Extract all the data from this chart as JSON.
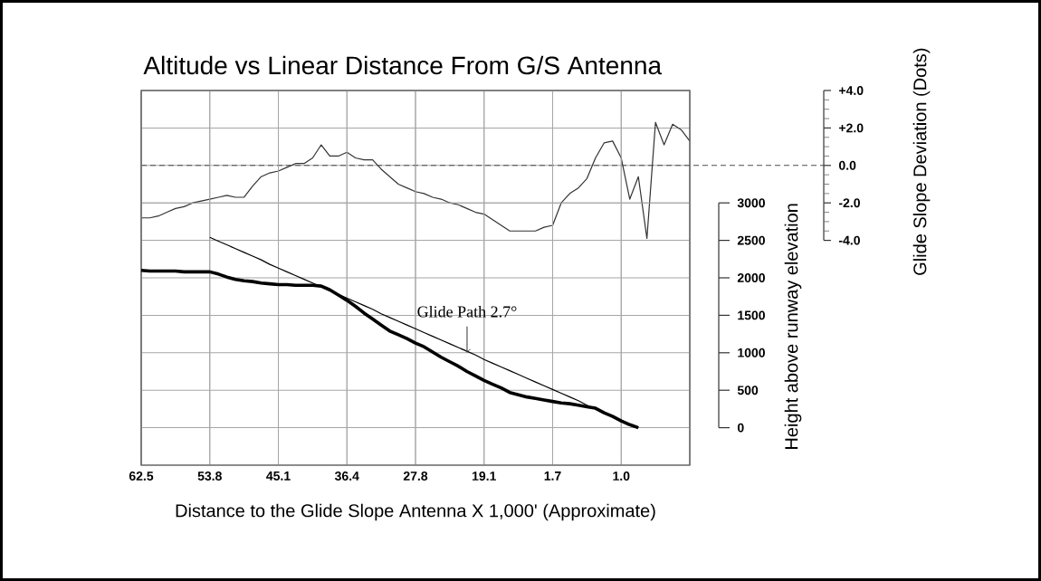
{
  "chart_data": [
    {
      "type": "line",
      "title": "Altitude vs Linear Distance From G/S Antenna",
      "xlabel": "Distance to the Glide Slope Antenna  X 1,000' (Approximate)",
      "ylabel": "Glide Slope Deviation (Dots)",
      "categories": [
        "62.5",
        null,
        null,
        null,
        null,
        null,
        null,
        null,
        "53.8",
        null,
        null,
        null,
        null,
        null,
        null,
        null,
        "45.1",
        null,
        null,
        null,
        null,
        null,
        null,
        null,
        "36.4",
        null,
        null,
        null,
        null,
        null,
        null,
        null,
        "27.8",
        null,
        null,
        null,
        null,
        null,
        null,
        null,
        "19.1",
        null,
        null,
        null,
        null,
        null,
        null,
        null,
        "1.7",
        null,
        null,
        null,
        null,
        null,
        null,
        null,
        "1.0",
        null,
        null,
        null,
        null,
        null,
        null,
        null,
        null
      ],
      "series": [
        {
          "color": "#333333",
          "values": [
            -2.8,
            -2.8,
            -2.7,
            -2.5,
            -2.3,
            -2.2,
            -2.0,
            -1.9,
            -1.8,
            -1.7,
            -1.6,
            -1.7,
            -1.7,
            -1.1,
            -0.6,
            -0.4,
            -0.3,
            -0.1,
            0.1,
            0.1,
            0.4,
            1.1,
            0.5,
            0.5,
            0.7,
            0.4,
            0.3,
            0.3,
            -0.2,
            -0.6,
            -1.0,
            -1.2,
            -1.4,
            -1.5,
            -1.7,
            -1.8,
            -2.0,
            -2.1,
            -2.3,
            -2.5,
            -2.6,
            -2.9,
            -3.2,
            -3.5,
            -3.5,
            -3.5,
            -3.5,
            -3.3,
            -3.2,
            -2.0,
            -1.5,
            -1.2,
            -0.7,
            0.4,
            1.2,
            1.3,
            0.4,
            -1.8,
            -0.6,
            -3.9,
            2.3,
            1.1,
            2.2,
            1.9,
            1.3
          ]
        }
      ],
      "ylim": [
        -16,
        4
      ],
      "yticks": [
        {
          "value": 4,
          "label": "+4.0"
        },
        {
          "value": 2,
          "label": "+2.0"
        },
        {
          "value": 0,
          "label": "0.0"
        },
        {
          "value": -2,
          "label": "-2.0"
        },
        {
          "value": -4,
          "label": "-4.0"
        }
      ],
      "grid": true,
      "ref_lines": [
        {
          "axis": "y",
          "value": 0,
          "line_style": "dashed"
        }
      ]
    },
    {
      "type": "line",
      "ylabel": "Height above runway elevation",
      "categories": [
        "62.5",
        null,
        null,
        null,
        null,
        null,
        null,
        null,
        "53.8",
        null,
        null,
        null,
        null,
        null,
        null,
        null,
        "45.1",
        null,
        null,
        null,
        null,
        null,
        null,
        null,
        "36.4",
        null,
        null,
        null,
        null,
        null,
        null,
        null,
        "27.8",
        null,
        null,
        null,
        null,
        null,
        null,
        null,
        "19.1",
        null,
        null,
        null,
        null,
        null,
        null,
        null,
        "1.7",
        null,
        null,
        null,
        null,
        null,
        null,
        null,
        "1.0",
        null,
        null,
        null,
        null,
        null,
        null,
        null,
        null
      ],
      "series": [
        {
          "color": "#000000",
          "values": [
            2100,
            2090,
            2090,
            2090,
            2090,
            2080,
            2080,
            2080,
            2080,
            2050,
            2010,
            1980,
            1960,
            1950,
            1930,
            1920,
            1910,
            1910,
            1900,
            1900,
            1900,
            1890,
            1840,
            1770,
            1700,
            1620,
            1530,
            1450,
            1370,
            1290,
            1240,
            1190,
            1130,
            1080,
            1010,
            940,
            880,
            820,
            750,
            690,
            630,
            580,
            530,
            470,
            440,
            410,
            390,
            370,
            350,
            330,
            320,
            300,
            280,
            260,
            200,
            150,
            90,
            40,
            0,
            null,
            null,
            null,
            null,
            null,
            null
          ]
        },
        {
          "color": "#000000",
          "values": [
            null,
            null,
            null,
            null,
            null,
            null,
            null,
            null,
            2540,
            2490,
            2440,
            2390,
            2340,
            2290,
            2240,
            2180,
            2130,
            2080,
            2030,
            1980,
            1930,
            1880,
            1830,
            1780,
            1730,
            1680,
            1630,
            1580,
            1520,
            1470,
            1420,
            1370,
            1320,
            1270,
            1220,
            1170,
            1120,
            1070,
            1020,
            970,
            910,
            860,
            810,
            760,
            710,
            660,
            610,
            560,
            510,
            460,
            410,
            360,
            300,
            250,
            200,
            150,
            100,
            50,
            0,
            null,
            null,
            null,
            null,
            null,
            null
          ]
        }
      ],
      "ylim": [
        -500,
        4500
      ],
      "yticks": [
        0,
        500,
        1000,
        1500,
        2000,
        2500,
        3000
      ],
      "grid": true,
      "tick_labels": "y",
      "annotations": [
        "Glide Path 2.7°"
      ]
    }
  ]
}
